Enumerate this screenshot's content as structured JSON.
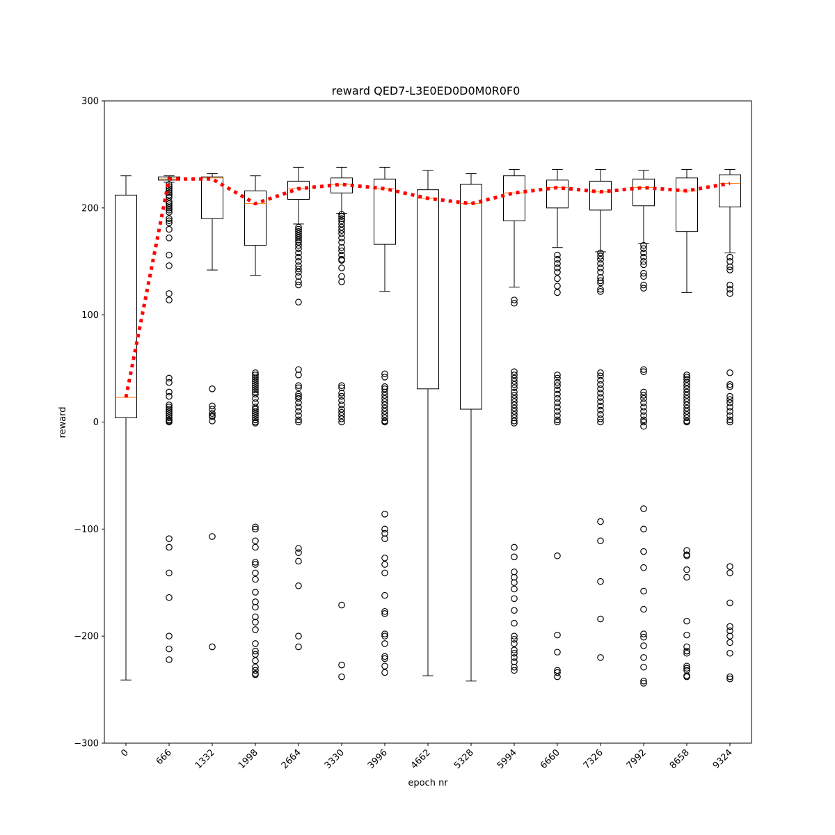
{
  "chart_data": {
    "type": "box",
    "title": "reward QED7-L3E0ED0D0M0R0F0",
    "xlabel": "epoch nr",
    "ylabel": "reward",
    "ylim": [
      -300,
      300
    ],
    "yticks": [
      -300,
      -200,
      -100,
      0,
      100,
      200,
      300
    ],
    "ytick_labels": [
      "−300",
      "−200",
      "−100",
      "0",
      "100",
      "200",
      "300"
    ],
    "categories": [
      "0",
      "666",
      "1332",
      "1998",
      "2664",
      "3330",
      "3996",
      "4662",
      "5328",
      "5994",
      "6660",
      "7326",
      "7992",
      "8658",
      "9324"
    ],
    "grid": false,
    "colors": {
      "box": "#000000",
      "median": "#ff7f0e",
      "mean_line": "#ff0000",
      "flier": "#000000"
    },
    "boxes": [
      {
        "whislo": -241,
        "q1": 4,
        "med": 23,
        "q3": 212,
        "whishi": 230,
        "fliers": []
      },
      {
        "whislo": 224,
        "q1": 226,
        "med": 227,
        "q3": 229,
        "whishi": 230,
        "fliers": [
          222,
          220,
          218,
          216,
          214,
          212,
          210,
          206,
          204,
          202,
          200,
          198,
          196,
          190,
          188,
          186,
          180,
          172,
          156,
          146,
          120,
          114,
          41,
          37,
          28,
          24,
          16,
          14,
          12,
          10,
          8,
          6,
          4,
          2,
          1,
          0,
          -109,
          -117,
          -141,
          -164,
          -200,
          -212,
          -222
        ]
      },
      {
        "whislo": 142,
        "q1": 190,
        "med": 228,
        "q3": 229,
        "whishi": 232,
        "fliers": [
          31,
          15,
          12,
          8,
          6,
          5,
          1,
          -107,
          -210
        ]
      },
      {
        "whislo": 137,
        "q1": 165,
        "med": 204,
        "q3": 216,
        "whishi": 230,
        "fliers": [
          46,
          44,
          42,
          40,
          38,
          36,
          34,
          32,
          30,
          28,
          26,
          22,
          18,
          14,
          12,
          10,
          8,
          6,
          4,
          2,
          0,
          -1,
          -98,
          -100,
          -111,
          -117,
          -131,
          -133,
          -141,
          -147,
          -159,
          -168,
          -173,
          -182,
          -187,
          -194,
          -207,
          -214,
          -217,
          -223,
          -229,
          -232,
          -235,
          -236
        ]
      },
      {
        "whislo": 185,
        "q1": 208,
        "med": 218,
        "q3": 225,
        "whishi": 238,
        "fliers": [
          182,
          180,
          178,
          176,
          174,
          172,
          170,
          168,
          165,
          162,
          158,
          154,
          150,
          146,
          143,
          140,
          136,
          131,
          128,
          112,
          49,
          44,
          34,
          32,
          26,
          24,
          22,
          18,
          14,
          10,
          6,
          2,
          0,
          -118,
          -122,
          -130,
          -153,
          -200,
          -210
        ]
      },
      {
        "whislo": 195,
        "q1": 214,
        "med": 222,
        "q3": 228,
        "whishi": 238,
        "fliers": [
          194,
          192,
          190,
          188,
          185,
          182,
          179,
          176,
          172,
          168,
          163,
          160,
          156,
          152,
          151,
          144,
          136,
          131,
          34,
          32,
          27,
          24,
          20,
          16,
          12,
          9,
          6,
          3,
          0,
          -171,
          -227,
          -238
        ]
      },
      {
        "whislo": 122,
        "q1": 166,
        "med": 218,
        "q3": 227,
        "whishi": 238,
        "fliers": [
          45,
          42,
          33,
          31,
          28,
          25,
          22,
          19,
          16,
          13,
          10,
          7,
          4,
          1,
          0,
          -86,
          -100,
          -104,
          -109,
          -127,
          -133,
          -141,
          -162,
          -177,
          -179,
          -198,
          -200,
          -207,
          -219,
          -221,
          -228,
          -234
        ]
      },
      {
        "whislo": -237,
        "q1": 31,
        "med": 209,
        "q3": 217,
        "whishi": 235,
        "fliers": []
      },
      {
        "whislo": -242,
        "q1": 12,
        "med": 204,
        "q3": 222,
        "whishi": 232,
        "fliers": []
      },
      {
        "whislo": 126,
        "q1": 188,
        "med": 214,
        "q3": 230,
        "whishi": 236,
        "fliers": [
          114,
          111,
          47,
          44,
          41,
          38,
          35,
          32,
          28,
          25,
          22,
          19,
          16,
          13,
          10,
          7,
          4,
          1,
          -1,
          -117,
          -126,
          -140,
          -145,
          -150,
          -156,
          -165,
          -176,
          -188,
          -200,
          -203,
          -207,
          -213,
          -216,
          -220,
          -224,
          -229,
          -232
        ]
      },
      {
        "whislo": 163,
        "q1": 200,
        "med": 219,
        "q3": 226,
        "whishi": 236,
        "fliers": [
          156,
          152,
          148,
          144,
          140,
          134,
          127,
          121,
          44,
          41,
          37,
          34,
          30,
          26,
          22,
          18,
          14,
          10,
          6,
          2,
          0,
          -125,
          -199,
          -215,
          -232,
          -234,
          -238
        ]
      },
      {
        "whislo": 159,
        "q1": 198,
        "med": 215,
        "q3": 225,
        "whishi": 236,
        "fliers": [
          158,
          155,
          152,
          148,
          144,
          140,
          135,
          132,
          130,
          124,
          122,
          46,
          43,
          39,
          35,
          31,
          27,
          23,
          19,
          15,
          11,
          7,
          3,
          0,
          -93,
          -111,
          -149,
          -184,
          -220
        ]
      },
      {
        "whislo": 167,
        "q1": 202,
        "med": 219,
        "q3": 227,
        "whishi": 235,
        "fliers": [
          165,
          162,
          158,
          154,
          150,
          147,
          139,
          136,
          128,
          125,
          49,
          47,
          28,
          25,
          22,
          18,
          14,
          10,
          6,
          2,
          0,
          -4,
          -81,
          -100,
          -121,
          -136,
          -158,
          -175,
          -198,
          -201,
          -209,
          -220,
          -229,
          -242,
          -244
        ]
      },
      {
        "whislo": 121,
        "q1": 178,
        "med": 216,
        "q3": 228,
        "whishi": 236,
        "fliers": [
          44,
          42,
          40,
          37,
          34,
          31,
          28,
          25,
          22,
          19,
          16,
          13,
          10,
          7,
          4,
          1,
          0,
          -120,
          -124,
          -125,
          -138,
          -145,
          -186,
          -199,
          -210,
          -214,
          -216,
          -228,
          -230,
          -232,
          -237,
          -238
        ]
      },
      {
        "whislo": 158,
        "q1": 201,
        "med": 223,
        "q3": 231,
        "whishi": 236,
        "fliers": [
          154,
          150,
          145,
          142,
          128,
          124,
          120,
          46,
          35,
          33,
          24,
          21,
          18,
          14,
          10,
          6,
          2,
          0,
          -135,
          -141,
          -169,
          -191,
          -195,
          -200,
          -206,
          -216,
          -238,
          -240
        ]
      }
    ],
    "mean_line": [
      23,
      227,
      227,
      204,
      218,
      222,
      218,
      209,
      204,
      214,
      219,
      215,
      219,
      216,
      223
    ]
  }
}
